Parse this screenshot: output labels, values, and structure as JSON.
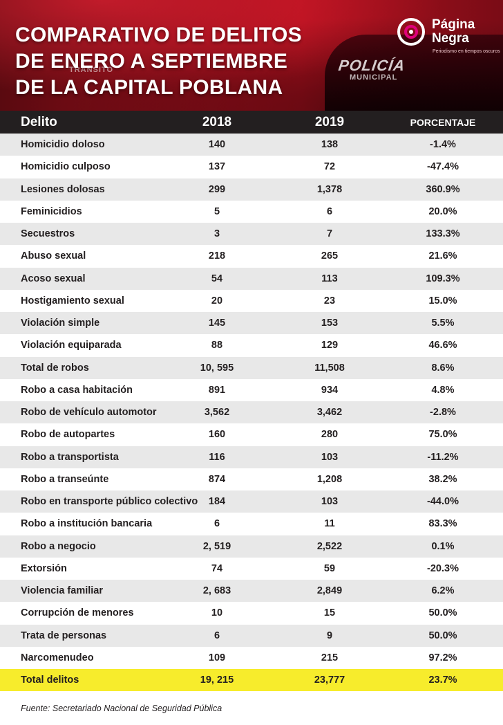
{
  "header": {
    "title_lines": [
      "COMPARATIVO DE DELITOS",
      "DE ENERO A SEPTIEMBRE",
      "DE LA CAPITAL POBLANA"
    ],
    "background_text": [
      "POLICÍA",
      "MUNICIPAL",
      "TRÁNSITO"
    ],
    "colors": {
      "primary": "#b0101e",
      "dark": "#231f20",
      "highlight": "#f7ec2c",
      "logo_accent": "#e0007a"
    }
  },
  "logo": {
    "name_lines": [
      "Página",
      "Negra"
    ],
    "tagline": "Periodismo en tiempos oscuros",
    "icon": "pagina-negra-logo-icon"
  },
  "chart_data": {
    "type": "table",
    "columns": [
      "Delito",
      "2018",
      "2019",
      "PORCENTAJE"
    ],
    "rows": [
      [
        "Homicidio doloso",
        "140",
        "138",
        "-1.4%"
      ],
      [
        "Homicidio culposo",
        "137",
        "72",
        "-47.4%"
      ],
      [
        "Lesiones dolosas",
        "299",
        "1,378",
        "360.9%"
      ],
      [
        "Feminicidios",
        "5",
        "6",
        "20.0%"
      ],
      [
        "Secuestros",
        "3",
        "7",
        "133.3%"
      ],
      [
        "Abuso sexual",
        "218",
        "265",
        "21.6%"
      ],
      [
        "Acoso sexual",
        "54",
        "113",
        "109.3%"
      ],
      [
        "Hostigamiento sexual",
        "20",
        "23",
        "15.0%"
      ],
      [
        "Violación simple",
        "145",
        "153",
        "5.5%"
      ],
      [
        "Violación equiparada",
        "88",
        "129",
        "46.6%"
      ],
      [
        "Total de robos",
        "10, 595",
        "11,508",
        "8.6%"
      ],
      [
        "Robo a casa habitación",
        "891",
        "934",
        "4.8%"
      ],
      [
        "Robo de vehículo automotor",
        "3,562",
        "3,462",
        "-2.8%"
      ],
      [
        "Robo de autopartes",
        "160",
        "280",
        "75.0%"
      ],
      [
        "Robo a transportista",
        "116",
        "103",
        "-11.2%"
      ],
      [
        "Robo a transeúnte",
        "874",
        "1,208",
        "38.2%"
      ],
      [
        "Robo en transporte público colectivo",
        "184",
        "103",
        "-44.0%"
      ],
      [
        "Robo a institución bancaria",
        "6",
        "11",
        "83.3%"
      ],
      [
        "Robo a negocio",
        "2, 519",
        "2,522",
        "0.1%"
      ],
      [
        "Extorsión",
        "74",
        "59",
        "-20.3%"
      ],
      [
        "Violencia familiar",
        "2, 683",
        "2,849",
        "6.2%"
      ],
      [
        "Corrupción de menores",
        "10",
        "15",
        "50.0%"
      ],
      [
        "Trata de personas",
        "6",
        "9",
        "50.0%"
      ],
      [
        "Narcomenudeo",
        "109",
        "215",
        "97.2%"
      ]
    ],
    "total_row": [
      "Total delitos",
      "19, 215",
      "23,777",
      "23.7%"
    ],
    "source": "Fuente: Secretariado Nacional de Seguridad Pública"
  }
}
